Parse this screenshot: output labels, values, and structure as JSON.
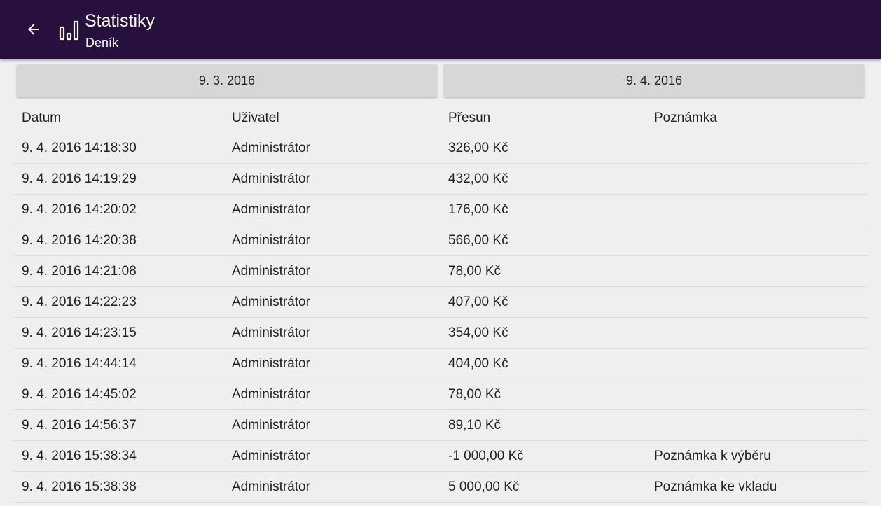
{
  "header": {
    "title": "Statistiky",
    "subtitle": "Deník",
    "back_icon": "arrow-left-icon",
    "app_icon": "bar-chart-icon",
    "background": "#27103d"
  },
  "date_range": {
    "from": "9. 3. 2016",
    "to": "9. 4. 2016"
  },
  "table": {
    "columns": [
      "Datum",
      "Uživatel",
      "Přesun",
      "Poznámka"
    ],
    "rows": [
      [
        "9. 4. 2016 14:18:30",
        "Administrátor",
        "326,00 Kč",
        ""
      ],
      [
        "9. 4. 2016 14:19:29",
        "Administrátor",
        "432,00 Kč",
        ""
      ],
      [
        "9. 4. 2016 14:20:02",
        "Administrátor",
        "176,00 Kč",
        ""
      ],
      [
        "9. 4. 2016 14:20:38",
        "Administrátor",
        "566,00 Kč",
        ""
      ],
      [
        "9. 4. 2016 14:21:08",
        "Administrátor",
        "78,00 Kč",
        ""
      ],
      [
        "9. 4. 2016 14:22:23",
        "Administrátor",
        "407,00 Kč",
        ""
      ],
      [
        "9. 4. 2016 14:23:15",
        "Administrátor",
        "354,00 Kč",
        ""
      ],
      [
        "9. 4. 2016 14:44:14",
        "Administrátor",
        "404,00 Kč",
        ""
      ],
      [
        "9. 4. 2016 14:45:02",
        "Administrátor",
        "78,00 Kč",
        ""
      ],
      [
        "9. 4. 2016 14:56:37",
        "Administrátor",
        "89,10 Kč",
        ""
      ],
      [
        "9. 4. 2016 15:38:34",
        "Administrátor",
        "-1 000,00 Kč",
        "Poznámka k výběru"
      ],
      [
        "9. 4. 2016 15:38:38",
        "Administrátor",
        "5 000,00 Kč",
        "Poznámka ke vkladu"
      ]
    ]
  }
}
